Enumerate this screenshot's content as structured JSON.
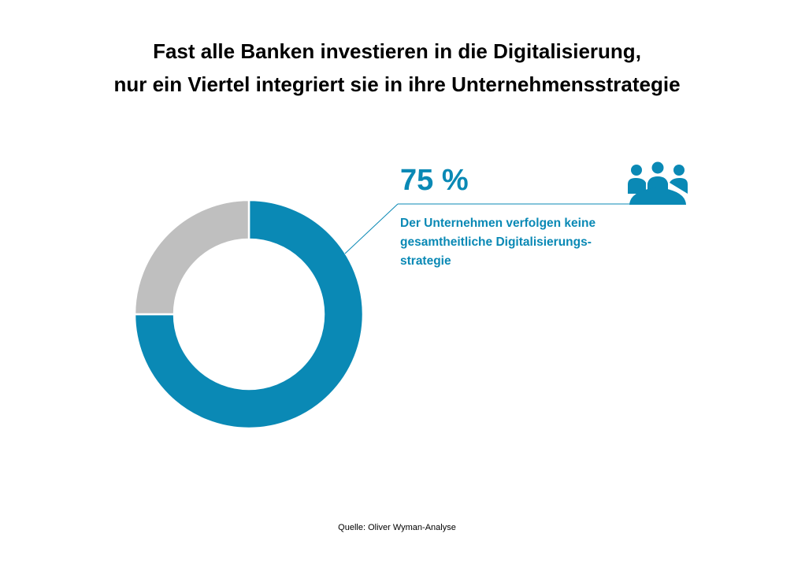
{
  "title": {
    "line1": "Fast alle Banken investieren in die Digitalisierung,",
    "line2": "nur ein Viertel integriert sie in ihre Unternehmensstrategie"
  },
  "callout": {
    "value": "75 %",
    "text_line1": "Der Unternehmen verfolgen keine",
    "text_line2": "gesamtheitliche Digitalisierungs-",
    "text_line3": "strategie",
    "icon": "group-of-people-icon"
  },
  "source": "Quelle: Oliver Wyman-Analyse",
  "colors": {
    "accent": "#0a89b5",
    "remainder": "#bfbfbf"
  },
  "chart_data": {
    "type": "pie",
    "title": "Fast alle Banken investieren in die Digitalisierung, nur ein Viertel integriert sie in ihre Unternehmensstrategie",
    "slices": [
      {
        "value": 75,
        "color": "#0a89b5"
      },
      {
        "value": 25,
        "color": "#bfbfbf"
      }
    ],
    "data_labels": [
      "75 %"
    ],
    "legend": "none"
  }
}
